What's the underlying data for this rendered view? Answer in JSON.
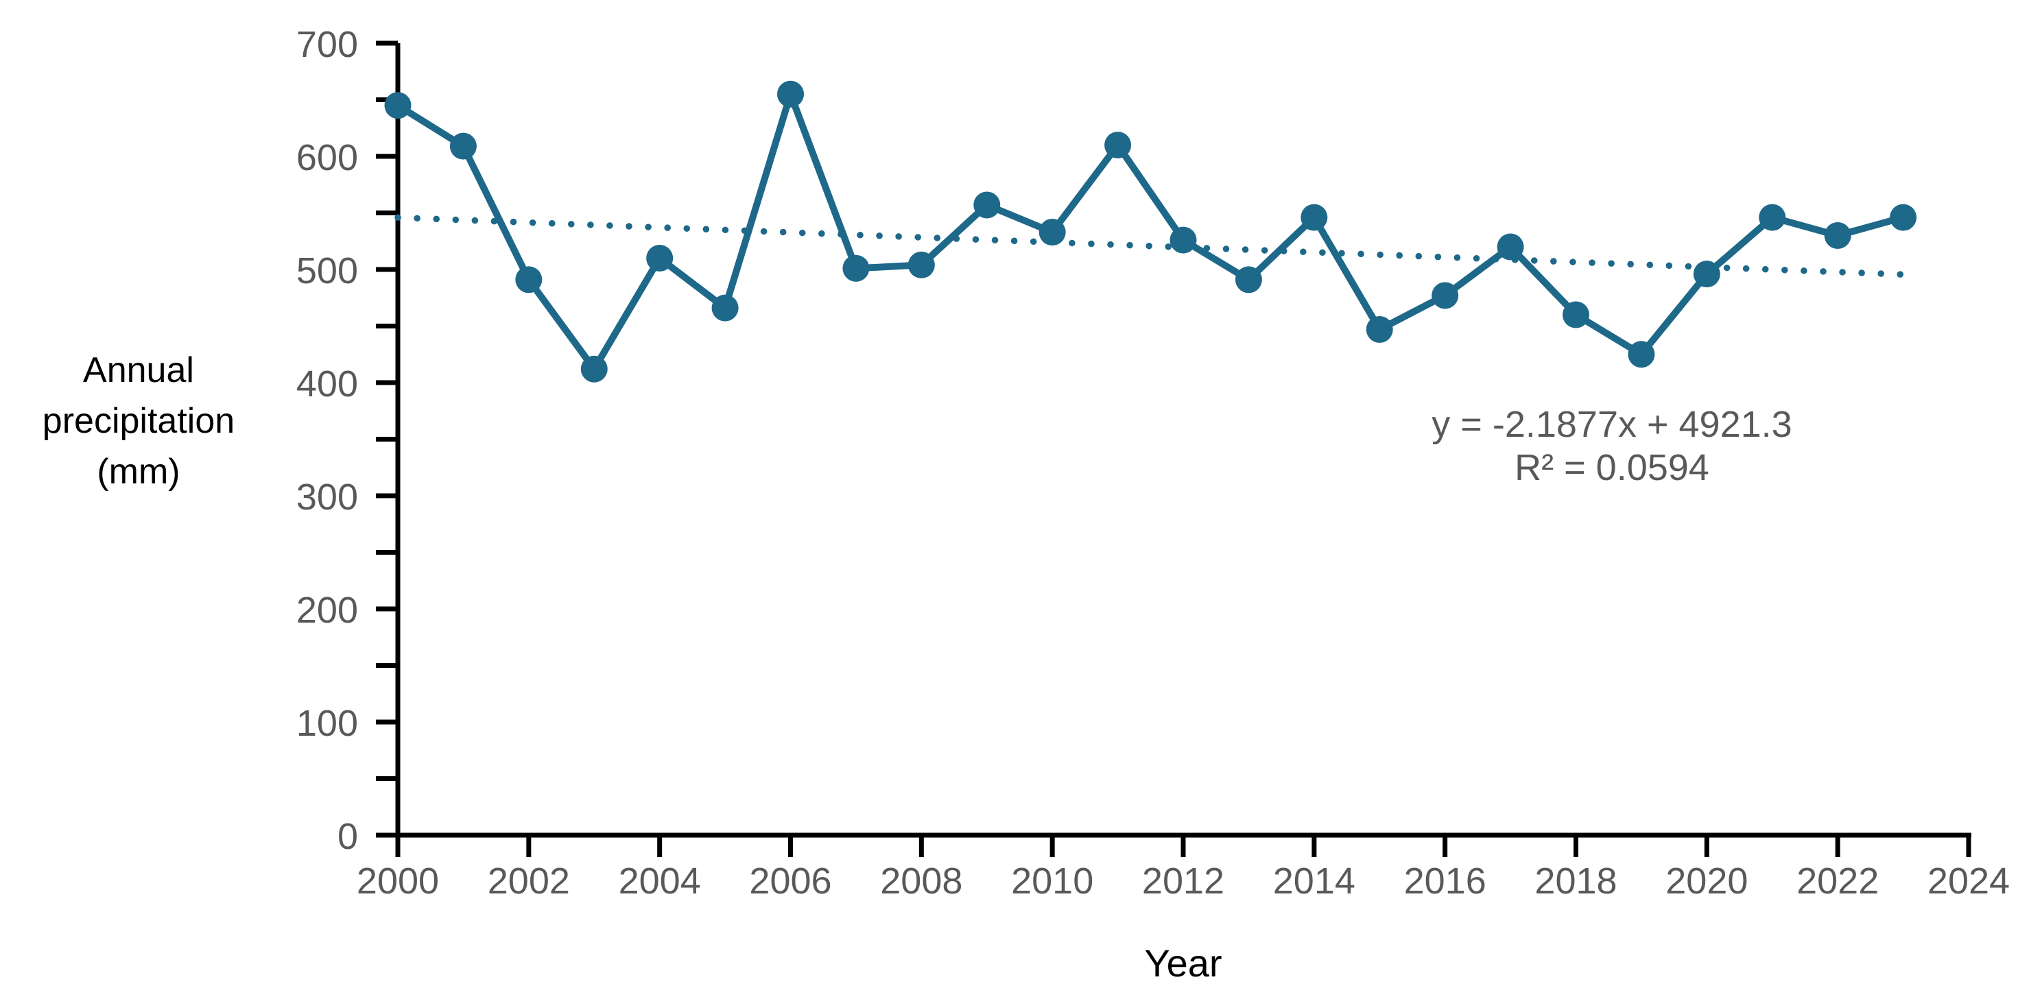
{
  "page": {
    "background": "#ffffff"
  },
  "chart_data": {
    "type": "line",
    "title": "",
    "xlabel": "Year",
    "ylabel": "Annual precipitation (mm)",
    "ylabel_lines": [
      "Annual",
      "precipitation",
      "(mm)"
    ],
    "series": [
      {
        "name": "Annual precipitation (mm)",
        "x": [
          2000,
          2001,
          2002,
          2003,
          2004,
          2005,
          2006,
          2007,
          2008,
          2009,
          2010,
          2011,
          2012,
          2013,
          2014,
          2015,
          2016,
          2017,
          2018,
          2019,
          2020,
          2021,
          2022,
          2023
        ],
        "values": [
          645,
          609,
          491,
          412,
          510,
          466,
          655,
          501,
          504,
          557,
          533,
          610,
          526,
          491,
          546,
          447,
          477,
          520,
          460,
          425,
          496,
          546,
          530,
          546
        ]
      }
    ],
    "trendline": {
      "equation": "y = -2.1877x + 4921.3",
      "r_squared_label": "R² = 0.0594",
      "slope": -2.1877,
      "intercept": 4921.3,
      "x_start": 2000,
      "x_end": 2023,
      "style": "dotted"
    },
    "xlim": [
      2000,
      2024
    ],
    "ylim": [
      0,
      700
    ],
    "x_tick_labels": [
      "2000",
      "2002",
      "2004",
      "2006",
      "2008",
      "2010",
      "2012",
      "2014",
      "2016",
      "2018",
      "2020",
      "2022",
      "2024"
    ],
    "y_tick_labels": [
      "0",
      "100",
      "200",
      "300",
      "400",
      "500",
      "600",
      "700"
    ],
    "y_tick_minor_step": 50,
    "x_tick_step": 2,
    "grid": false,
    "legend": false,
    "marker": "circle",
    "colors": {
      "series": "#1e6889",
      "trendline": "#1e6889",
      "axis": "#000000",
      "tick_labels": "#595959",
      "equation_text": "#595959",
      "axis_titles": "#000000"
    }
  }
}
